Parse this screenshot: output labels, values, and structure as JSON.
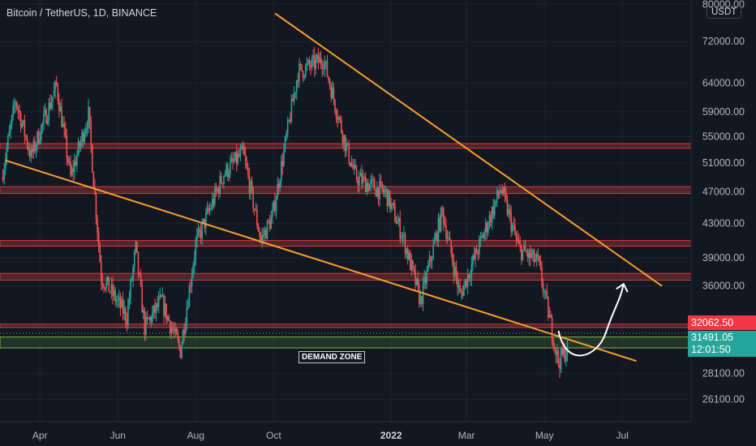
{
  "header": {
    "title": "Bitcoin / TetherUS, 1D, BINANCE",
    "currency": "USDT"
  },
  "chart_data": {
    "type": "candlestick",
    "title": "Bitcoin / TetherUS, 1D, BINANCE",
    "y_scale": "log",
    "ylim": [
      24500,
      81000
    ],
    "y_ticks": [
      80000,
      72000,
      64000,
      59000,
      55000,
      51000,
      47000,
      43000,
      39000,
      36000,
      28100,
      26100
    ],
    "y_tick_labels": [
      "80000.00",
      "72000.00",
      "64000.00",
      "59000.00",
      "55000.00",
      "51000.00",
      "47000.00",
      "43000.00",
      "39000.00",
      "36000.00",
      "28100.00",
      "26100.00"
    ],
    "x_range": [
      "2021-03-02",
      "2022-08-01"
    ],
    "x_ticks": [
      {
        "date": "2021-04-01",
        "label": "Apr"
      },
      {
        "date": "2021-06-01",
        "label": "Jun"
      },
      {
        "date": "2021-08-01",
        "label": "Aug"
      },
      {
        "date": "2021-10-01",
        "label": "Oct"
      },
      {
        "date": "2022-01-01",
        "label": "2022",
        "bold": true
      },
      {
        "date": "2022-03-01",
        "label": "Mar"
      },
      {
        "date": "2022-05-01",
        "label": "May"
      },
      {
        "date": "2022-07-01",
        "label": "Jul"
      }
    ],
    "close_path": [
      [
        "2021-03-02",
        49000
      ],
      [
        "2021-03-13",
        61000
      ],
      [
        "2021-03-25",
        52000
      ],
      [
        "2021-04-14",
        63500
      ],
      [
        "2021-04-25",
        49000
      ],
      [
        "2021-05-09",
        58500
      ],
      [
        "2021-05-19",
        37000
      ],
      [
        "2021-06-08",
        33000
      ],
      [
        "2021-06-15",
        40000
      ],
      [
        "2021-06-22",
        32000
      ],
      [
        "2021-07-05",
        34500
      ],
      [
        "2021-07-20",
        30000
      ],
      [
        "2021-08-01",
        40500
      ],
      [
        "2021-08-23",
        49500
      ],
      [
        "2021-09-07",
        52500
      ],
      [
        "2021-09-21",
        41000
      ],
      [
        "2021-09-30",
        43800
      ],
      [
        "2021-10-20",
        66000
      ],
      [
        "2021-11-09",
        68500
      ],
      [
        "2021-11-26",
        54000
      ],
      [
        "2021-12-04",
        49000
      ],
      [
        "2021-12-28",
        46800
      ],
      [
        "2022-01-10",
        41500
      ],
      [
        "2022-01-24",
        34500
      ],
      [
        "2022-02-10",
        44500
      ],
      [
        "2022-02-24",
        35000
      ],
      [
        "2022-03-28",
        47500
      ],
      [
        "2022-04-11",
        40000
      ],
      [
        "2022-04-26",
        38500
      ],
      [
        "2022-05-12",
        29000
      ],
      [
        "2022-05-19",
        30200
      ]
    ],
    "last_price": "31491.05",
    "countdown": "12:01:50",
    "marked_price": "32062.50",
    "resistance_zones": [
      {
        "low": 53200,
        "high": 53900
      },
      {
        "low": 46800,
        "high": 47700
      },
      {
        "low": 40300,
        "high": 40950
      },
      {
        "low": 36600,
        "high": 37300
      },
      {
        "low": 32000,
        "high": 32300
      }
    ],
    "demand_zone": {
      "low": 30200,
      "high": 31150,
      "label": "DEMAND ZONE"
    },
    "trendlines": [
      {
        "name": "upper",
        "from": [
          "2021-10-02",
          78000
        ],
        "to": [
          "2022-08-01",
          36000
        ]
      },
      {
        "name": "lower",
        "from": [
          "2021-03-05",
          51400
        ],
        "to": [
          "2022-07-12",
          29100
        ]
      }
    ],
    "projection_arrow": {
      "from": [
        "2022-05-12",
        31700
      ],
      "via": [
        "2022-05-30",
        30100
      ],
      "to": [
        "2022-07-02",
        36200
      ]
    },
    "colors": {
      "up": "#26a69a",
      "down": "#ef5350",
      "trendline": "#f7a02d",
      "zone": "#c53a3a",
      "demand": "#7ab648",
      "background": "#131722"
    }
  }
}
